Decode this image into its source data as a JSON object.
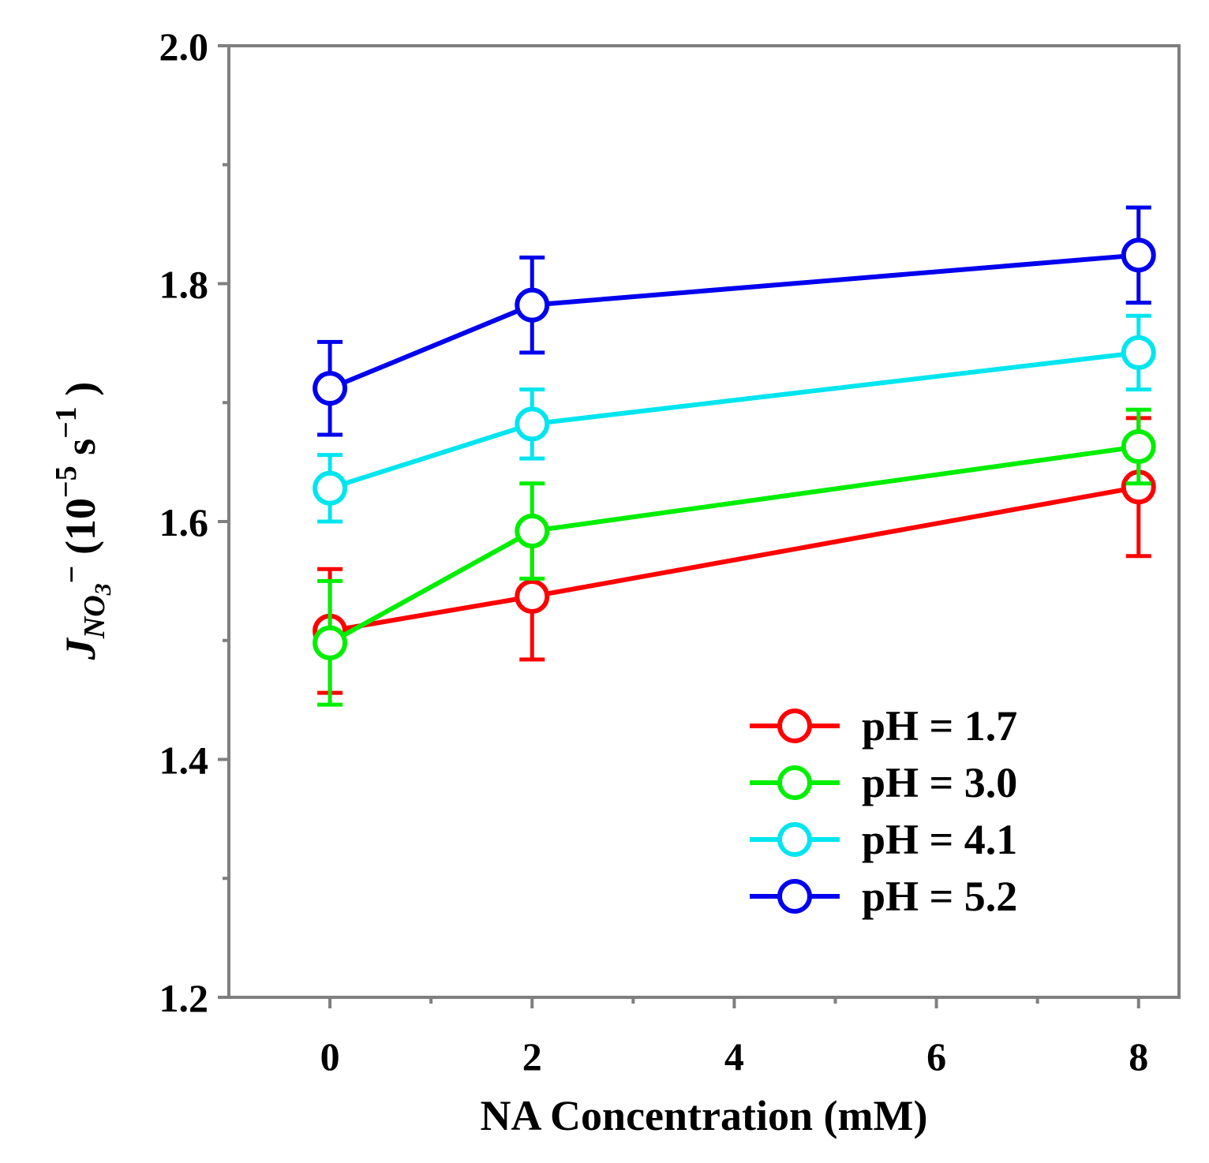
{
  "chart_data": {
    "type": "line",
    "title": "",
    "xlabel": "NA Concentration (mM)",
    "ylabel": {
      "symbol": "J",
      "subscript": "NO",
      "subsubscript": "3",
      "superscript": "−",
      "unit_open": "(10",
      "unit_exp": "−5",
      "unit_s": "s",
      "unit_s_exp": "−1",
      "unit_close": ")"
    },
    "xlim": [
      -1,
      8.4
    ],
    "ylim": [
      1.2,
      2.0
    ],
    "xticks": [
      0,
      2,
      4,
      6,
      8
    ],
    "xtick_labels": [
      "0",
      "2",
      "4",
      "6",
      "8"
    ],
    "yticks": [
      1.2,
      1.4,
      1.6,
      1.8,
      2.0
    ],
    "ytick_labels": [
      "1.2",
      "1.4",
      "1.6",
      "1.8",
      "2.0"
    ],
    "grid": false,
    "legend_position": "bottom-right",
    "x": [
      0,
      2,
      8
    ],
    "series": [
      {
        "name": "pH = 1.7",
        "color": "#ff0000",
        "values": [
          1.508,
          1.537,
          1.629
        ],
        "errors": [
          0.052,
          0.053,
          0.058
        ]
      },
      {
        "name": "pH = 3.0",
        "color": "#00ee00",
        "values": [
          1.498,
          1.592,
          1.663
        ],
        "errors": [
          0.052,
          0.04,
          0.031
        ]
      },
      {
        "name": "pH = 4.1",
        "color": "#00e5ee",
        "values": [
          1.628,
          1.682,
          1.742
        ],
        "errors": [
          0.028,
          0.029,
          0.031
        ]
      },
      {
        "name": "pH = 5.2",
        "color": "#0000ee",
        "values": [
          1.712,
          1.782,
          1.824
        ],
        "errors": [
          0.039,
          0.04,
          0.04
        ]
      }
    ]
  }
}
